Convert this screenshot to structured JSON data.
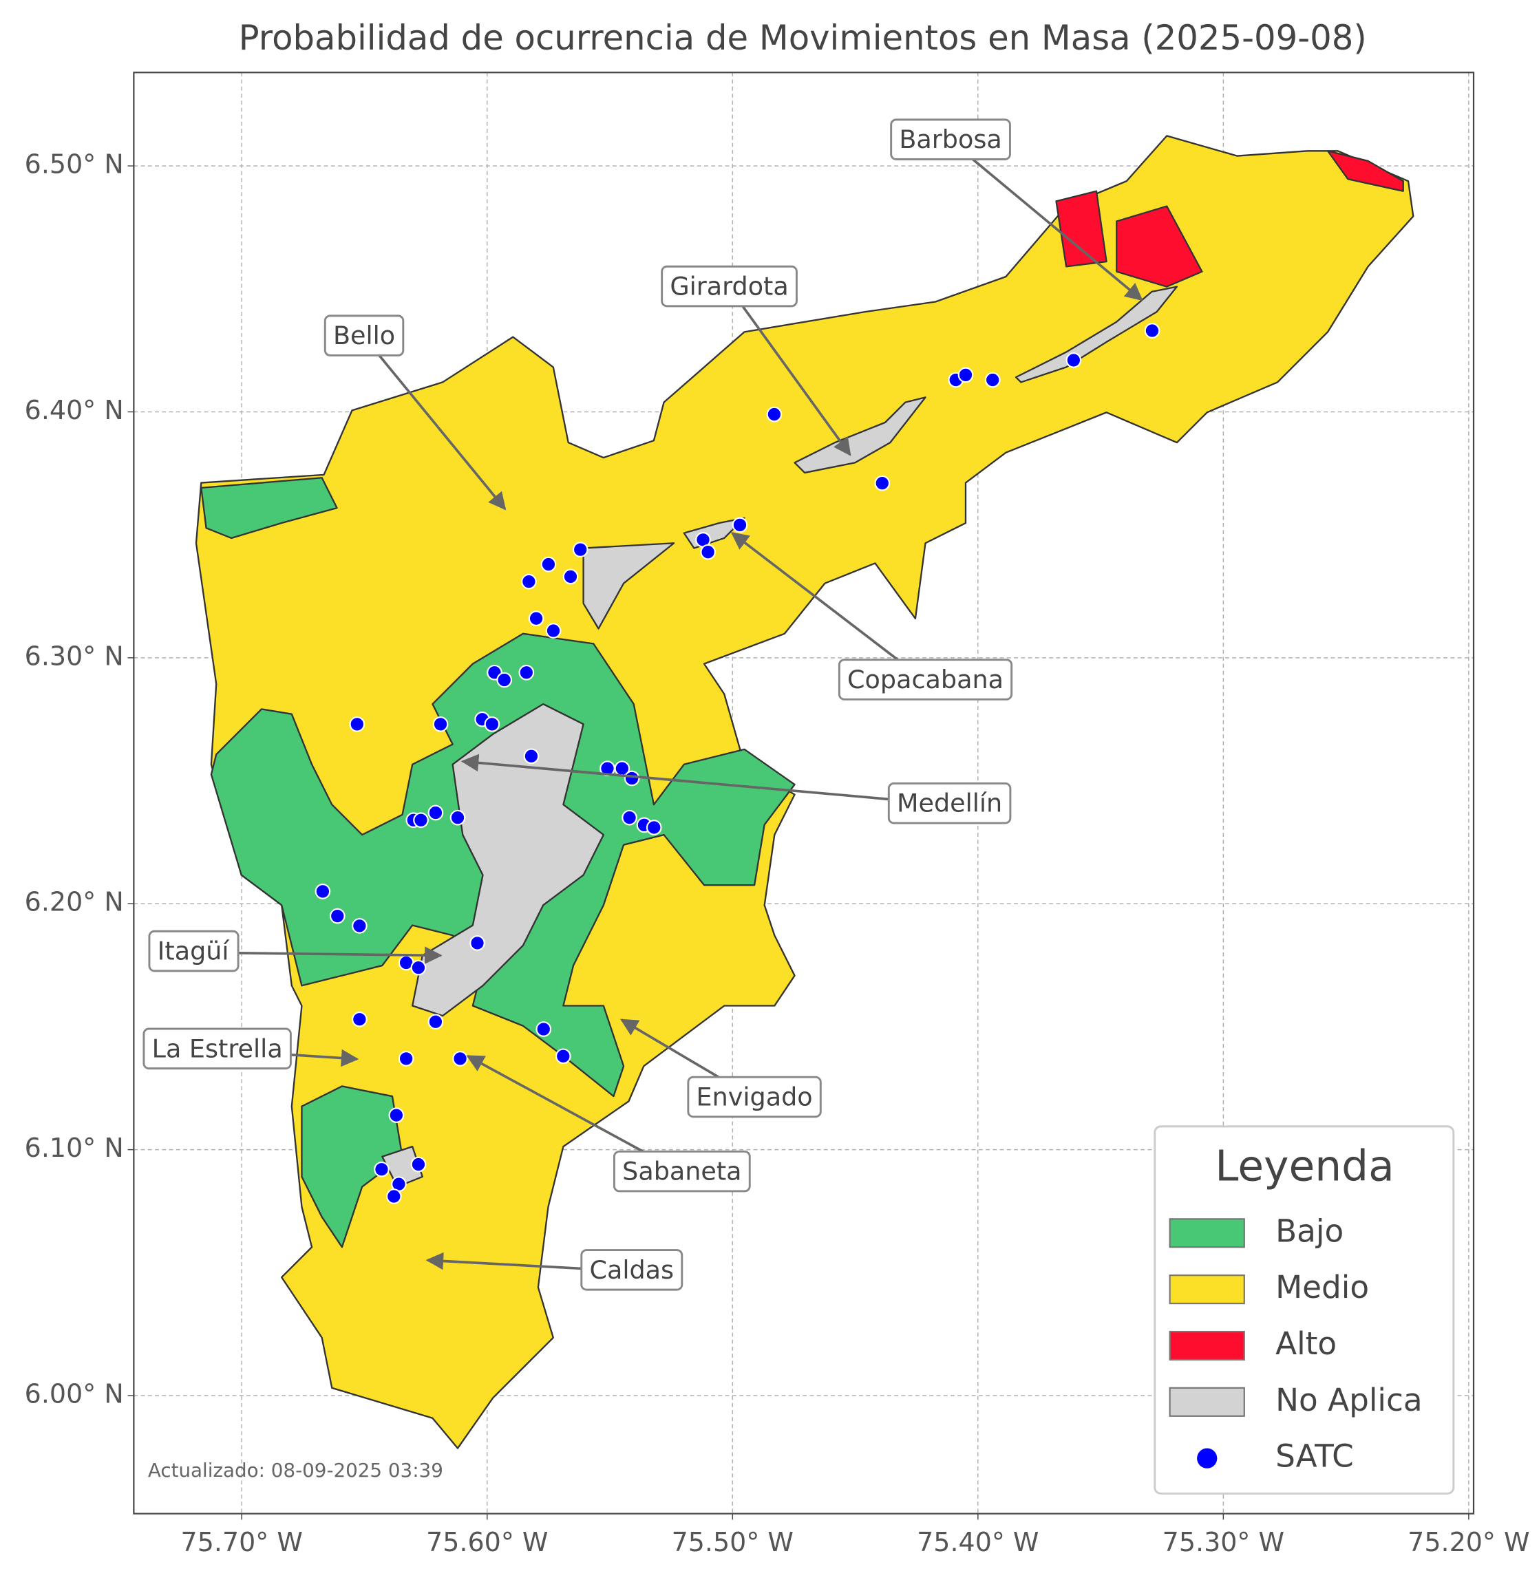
{
  "chart_data": {
    "type": "map",
    "title": "Probabilidad de ocurrencia de Movimientos en Masa (2025-09-08)",
    "footnote": "Actualizado: 08-09-2025 03:39",
    "xlim": [
      -75.744,
      -75.198
    ],
    "ylim": [
      5.952,
      6.538
    ],
    "xticks": [
      {
        "value": -75.7,
        "label": "75.70° W"
      },
      {
        "value": -75.6,
        "label": "75.60° W"
      },
      {
        "value": -75.5,
        "label": "75.50° W"
      },
      {
        "value": -75.4,
        "label": "75.40° W"
      },
      {
        "value": -75.3,
        "label": "75.30° W"
      },
      {
        "value": -75.2,
        "label": "75.20° W"
      }
    ],
    "yticks": [
      {
        "value": 6.0,
        "label": "6.00° N"
      },
      {
        "value": 6.1,
        "label": "6.10° N"
      },
      {
        "value": 6.2,
        "label": "6.20° N"
      },
      {
        "value": 6.3,
        "label": "6.30° N"
      },
      {
        "value": 6.4,
        "label": "6.40° N"
      },
      {
        "value": 6.5,
        "label": "6.50° N"
      }
    ],
    "grid": true,
    "legend_title": "Leyenda",
    "legend_position": "lower right",
    "classes": [
      {
        "name": "Bajo",
        "color": "#48c774"
      },
      {
        "name": "Medio",
        "color": "#fce028"
      },
      {
        "name": "Alto",
        "color": "#ff0d2e"
      },
      {
        "name": "No Aplica",
        "color": "#d3d3d3"
      }
    ],
    "series": [
      {
        "name": "SATC",
        "color": "#0000ff",
        "lon": [
          -75.483,
          -75.439,
          -75.409,
          -75.405,
          -75.394,
          -75.361,
          -75.329,
          -75.497,
          -75.512,
          -75.51,
          -75.562,
          -75.575,
          -75.566,
          -75.583,
          -75.58,
          -75.573,
          -75.597,
          -75.593,
          -75.584,
          -75.653,
          -75.619,
          -75.602,
          -75.598,
          -75.582,
          -75.551,
          -75.545,
          -75.541,
          -75.542,
          -75.536,
          -75.532,
          -75.621,
          -75.63,
          -75.627,
          -75.612,
          -75.667,
          -75.661,
          -75.652,
          -75.604,
          -75.633,
          -75.628,
          -75.621,
          -75.652,
          -75.577,
          -75.569,
          -75.633,
          -75.611,
          -75.637,
          -75.643,
          -75.628,
          -75.636,
          -75.638
        ],
        "lat": [
          6.399,
          6.371,
          6.413,
          6.415,
          6.413,
          6.421,
          6.433,
          6.354,
          6.348,
          6.343,
          6.344,
          6.338,
          6.333,
          6.331,
          6.316,
          6.311,
          6.294,
          6.291,
          6.294,
          6.273,
          6.273,
          6.275,
          6.273,
          6.26,
          6.255,
          6.255,
          6.251,
          6.235,
          6.232,
          6.231,
          6.237,
          6.234,
          6.234,
          6.235,
          6.205,
          6.195,
          6.191,
          6.184,
          6.176,
          6.174,
          6.152,
          6.153,
          6.149,
          6.138,
          6.137,
          6.137,
          6.114,
          6.092,
          6.094,
          6.086,
          6.081
        ]
      }
    ],
    "annotations": [
      "Barbosa",
      "Girardota",
      "Bello",
      "Copacabana",
      "Medellín",
      "Itagüí",
      "La Estrella",
      "Envigado",
      "Sabaneta",
      "Caldas"
    ]
  }
}
